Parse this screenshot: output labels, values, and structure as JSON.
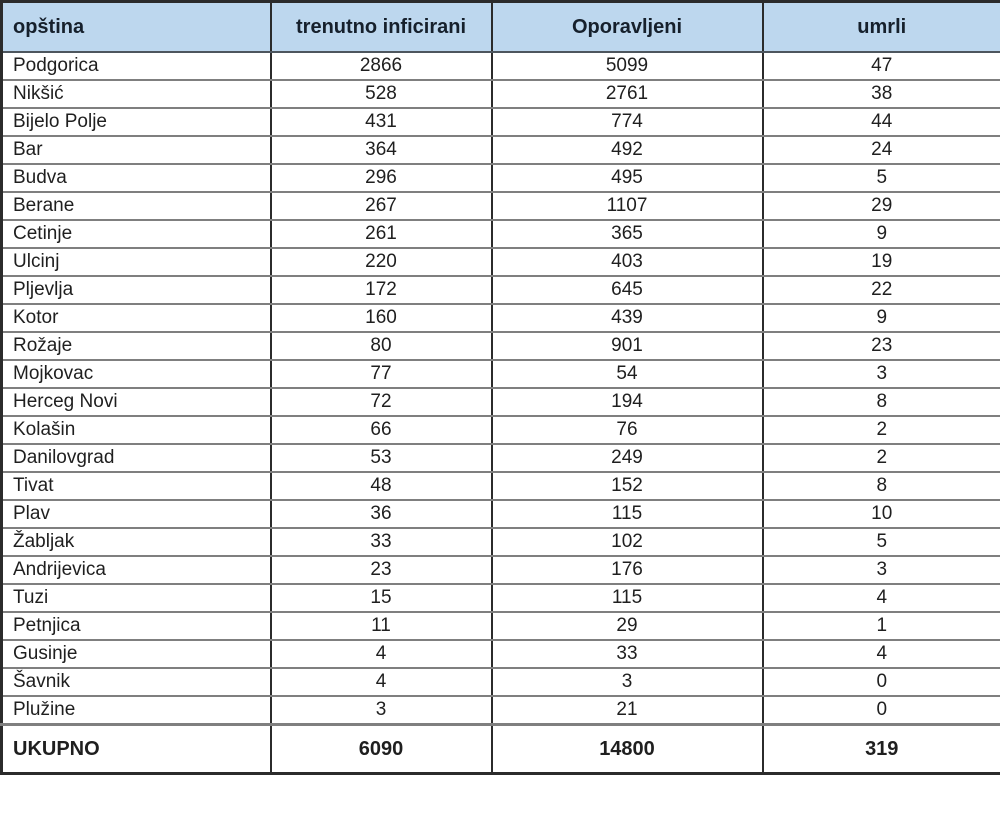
{
  "colors": {
    "header_bg": "#bdd7ee",
    "header_text": "#16202c",
    "body_text": "#1f1f1f",
    "grid_vertical": "#2b2b2b",
    "grid_horizontal": "#7f7f7f",
    "row_bg": "#ffffff"
  },
  "chart_data": {
    "type": "table",
    "title": "",
    "columns": [
      "opština",
      "trenutno inficirani",
      "Oporavljeni",
      "umrli"
    ],
    "rows": [
      [
        "Podgorica",
        2866,
        5099,
        47
      ],
      [
        "Nikšić",
        528,
        2761,
        38
      ],
      [
        "Bijelo Polje",
        431,
        774,
        44
      ],
      [
        "Bar",
        364,
        492,
        24
      ],
      [
        "Budva",
        296,
        495,
        5
      ],
      [
        "Berane",
        267,
        1107,
        29
      ],
      [
        "Cetinje",
        261,
        365,
        9
      ],
      [
        "Ulcinj",
        220,
        403,
        19
      ],
      [
        "Pljevlja",
        172,
        645,
        22
      ],
      [
        "Kotor",
        160,
        439,
        9
      ],
      [
        "Rožaje",
        80,
        901,
        23
      ],
      [
        "Mojkovac",
        77,
        54,
        3
      ],
      [
        "Herceg Novi",
        72,
        194,
        8
      ],
      [
        "Kolašin",
        66,
        76,
        2
      ],
      [
        "Danilovgrad",
        53,
        249,
        2
      ],
      [
        "Tivat",
        48,
        152,
        8
      ],
      [
        "Plav",
        36,
        115,
        10
      ],
      [
        "Žabljak",
        33,
        102,
        5
      ],
      [
        "Andrijevica",
        23,
        176,
        3
      ],
      [
        "Tuzi",
        15,
        115,
        4
      ],
      [
        "Petnjica",
        11,
        29,
        1
      ],
      [
        "Gusinje",
        4,
        33,
        4
      ],
      [
        "Šavnik",
        4,
        3,
        0
      ],
      [
        "Plužine",
        3,
        21,
        0
      ]
    ],
    "total_row": [
      "UKUPNO",
      6090,
      14800,
      319
    ]
  }
}
